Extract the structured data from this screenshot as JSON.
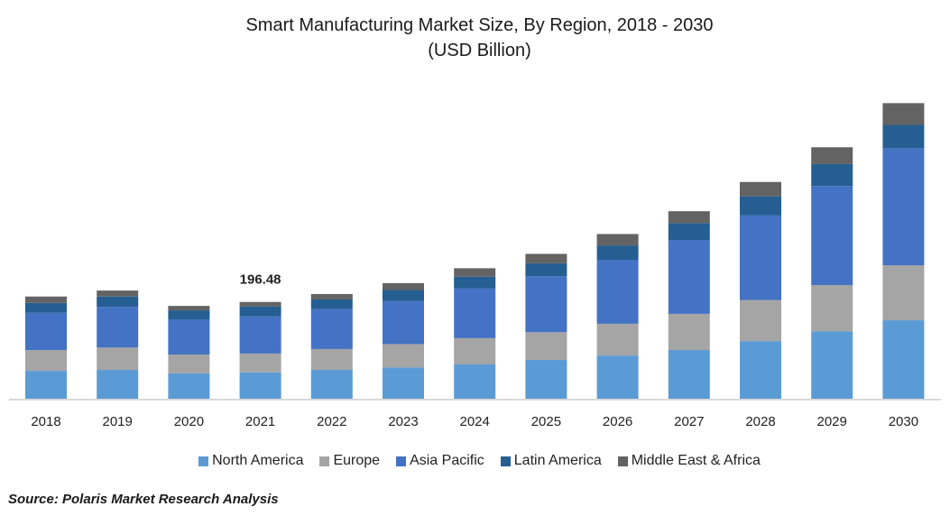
{
  "chart_data": {
    "type": "bar",
    "stacked": true,
    "title": "Smart Manufacturing Market Size, By Region, 2018 - 2030",
    "subtitle": "(USD Billion)",
    "xlabel": "",
    "ylabel": "",
    "categories": [
      "2018",
      "2019",
      "2020",
      "2021",
      "2022",
      "2023",
      "2024",
      "2025",
      "2026",
      "2027",
      "2028",
      "2029",
      "2030"
    ],
    "series": [
      {
        "name": "North America",
        "color": "#5B9BD5",
        "values": [
          58,
          60,
          53,
          55,
          60,
          65,
          71,
          80,
          89,
          100,
          118,
          138,
          160
        ]
      },
      {
        "name": "Europe",
        "color": "#A5A5A5",
        "values": [
          42,
          45,
          38,
          38,
          42,
          47,
          53,
          56,
          64,
          73,
          83,
          93,
          111
        ]
      },
      {
        "name": "Asia Pacific",
        "color": "#4472C4",
        "values": [
          75,
          82,
          71,
          75,
          81,
          87,
          100,
          113,
          129,
          149,
          171,
          200,
          236
        ]
      },
      {
        "name": "Latin America",
        "color": "#255E91",
        "values": [
          20,
          21,
          18,
          20,
          19,
          22,
          24,
          26,
          29,
          34,
          38,
          44,
          47
        ]
      },
      {
        "name": "Middle East & Africa",
        "color": "#636363",
        "values": [
          13,
          12,
          9,
          9,
          11,
          14,
          17,
          19,
          23,
          24,
          29,
          34,
          44
        ]
      }
    ],
    "annotations": [
      {
        "category": "2021",
        "label": "196.48"
      }
    ],
    "ylim": [
      0,
      600
    ],
    "grid": false,
    "legend_position": "bottom"
  },
  "source": "Source: Polaris  Market Research Analysis"
}
